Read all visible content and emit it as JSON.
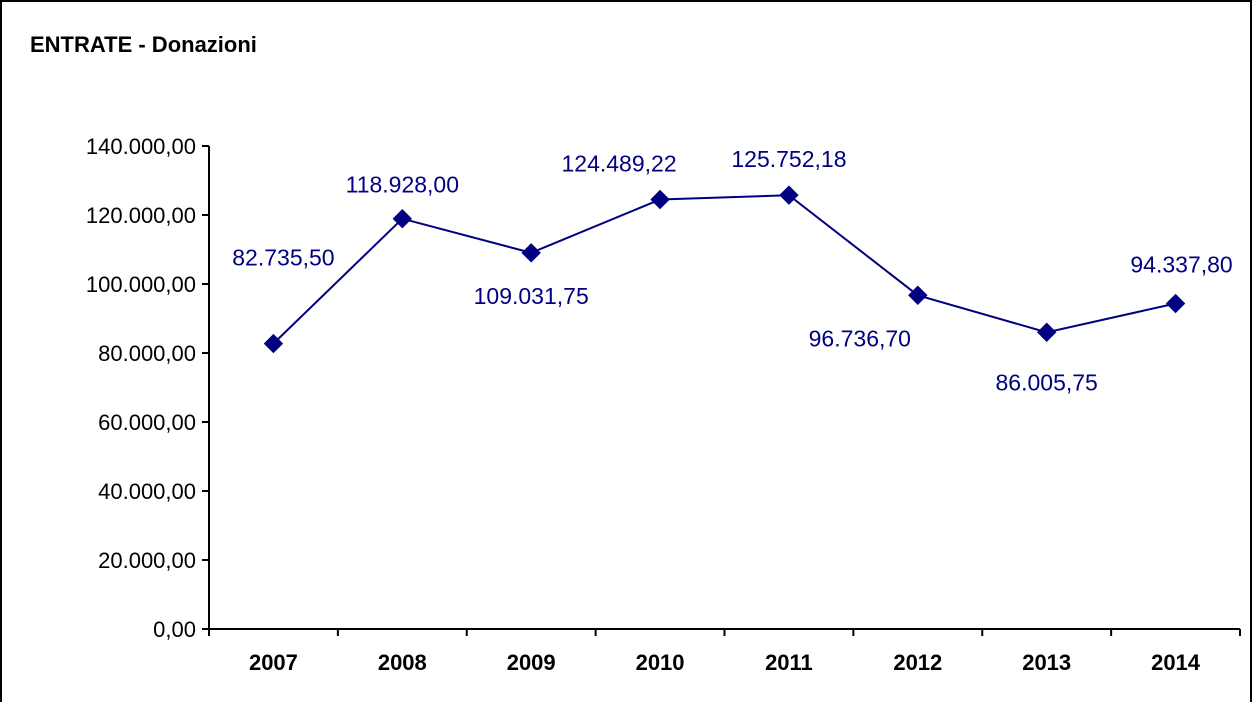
{
  "chart_data": {
    "type": "line",
    "title": "ENTRATE - Donazioni",
    "xlabel": "",
    "ylabel": "",
    "categories": [
      "2007",
      "2008",
      "2009",
      "2010",
      "2011",
      "2012",
      "2013",
      "2014"
    ],
    "series": [
      {
        "values": [
          82735.5,
          118928.0,
          109031.75,
          124489.22,
          125752.18,
          96736.7,
          86005.75,
          94337.8
        ],
        "labels": [
          "82.735,50",
          "118.928,00",
          "109.031,75",
          "124.489,22",
          "125.752,18",
          "96.736,70",
          "86.005,75",
          "94.337,80"
        ],
        "marker": "diamond"
      }
    ],
    "ylim": [
      0,
      140000
    ],
    "y_ticks": [
      "0,00",
      "20.000,00",
      "40.000,00",
      "60.000,00",
      "80.000,00",
      "100.000,00",
      "120.000,00",
      "140.000,00"
    ],
    "grid": false,
    "legend": "none",
    "colors": {
      "series": "#000080",
      "axis": "#000000",
      "frame": "#000000"
    }
  }
}
